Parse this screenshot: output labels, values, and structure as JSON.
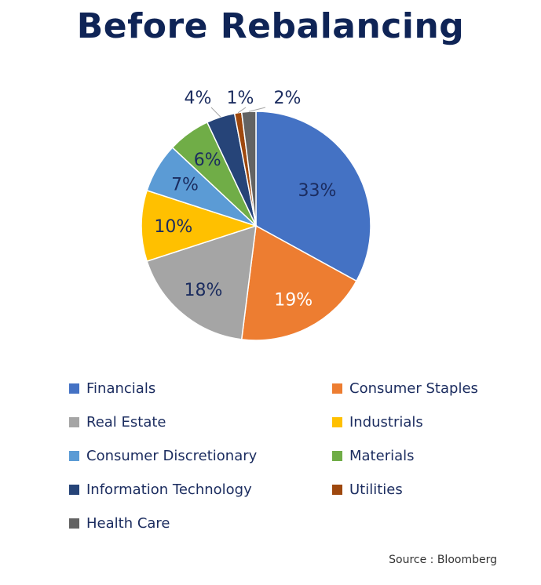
{
  "chart_data": {
    "type": "pie",
    "title": "Before Rebalancing",
    "categories": [
      "Financials",
      "Consumer Staples",
      "Real Estate",
      "Industrials",
      "Consumer Discretionary",
      "Materials",
      "Information Technology",
      "Utilities",
      "Health Care"
    ],
    "values": [
      33,
      19,
      18,
      10,
      7,
      6,
      4,
      1,
      2
    ],
    "labels": [
      "33%",
      "19%",
      "18%",
      "10%",
      "7%",
      "6%",
      "4%",
      "1%",
      "2%"
    ],
    "colors": [
      "#4472c4",
      "#ed7d31",
      "#a5a5a5",
      "#ffc000",
      "#5b9bd5",
      "#70ad47",
      "#264478",
      "#9e480e",
      "#636363"
    ],
    "legend_position": "bottom",
    "source": "Source : Bloomberg"
  }
}
